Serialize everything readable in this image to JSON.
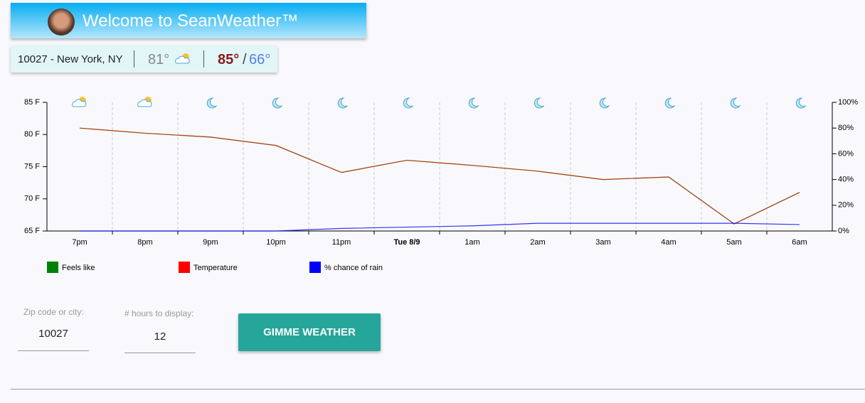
{
  "header": {
    "title": "Welcome to SeanWeather™"
  },
  "current": {
    "location": "10027 - New York, NY",
    "temp": "81°",
    "high": "85°",
    "separator": "/",
    "low": "66°"
  },
  "chart_data": {
    "type": "line",
    "categories": [
      "7pm",
      "8pm",
      "9pm",
      "10pm",
      "11pm",
      "Tue 8/9",
      "1am",
      "2am",
      "3am",
      "4am",
      "5am",
      "6am"
    ],
    "series": [
      {
        "name": "Feels like",
        "color": "#008000",
        "values": [
          81,
          80.2,
          79.6,
          78.3,
          74.1,
          76,
          75.2,
          74.3,
          73,
          73.4,
          66.1,
          71
        ]
      },
      {
        "name": "Temperature",
        "color": "#ff0000",
        "values": [
          81,
          80.2,
          79.6,
          78.3,
          74.1,
          76,
          75.2,
          74.3,
          73,
          73.4,
          66.1,
          71
        ]
      },
      {
        "name": "% chance of rain",
        "color": "#0000ff",
        "axis": "y2",
        "values": [
          0,
          0,
          0,
          0,
          2,
          3,
          4,
          6,
          6,
          6,
          6,
          5
        ]
      }
    ],
    "ylim": [
      65,
      85
    ],
    "yticks": [
      {
        "value": 65,
        "label": "65 F"
      },
      {
        "value": 70,
        "label": "70 F"
      },
      {
        "value": 75,
        "label": "75 F"
      },
      {
        "value": 80,
        "label": "80 F"
      },
      {
        "value": 85,
        "label": "85 F"
      }
    ],
    "y2lim": [
      0,
      100
    ],
    "y2ticks": [
      {
        "value": 0,
        "label": "0%"
      },
      {
        "value": 20,
        "label": "20%"
      },
      {
        "value": 40,
        "label": "40%"
      },
      {
        "value": 60,
        "label": "60%"
      },
      {
        "value": 80,
        "label": "80%"
      },
      {
        "value": 100,
        "label": "100%"
      }
    ]
  },
  "form": {
    "zip_label": "Zip code or city:",
    "zip_value": "10027",
    "hours_label": "# hours to display:",
    "hours_value": "12",
    "button": "GIMME WEATHER"
  }
}
